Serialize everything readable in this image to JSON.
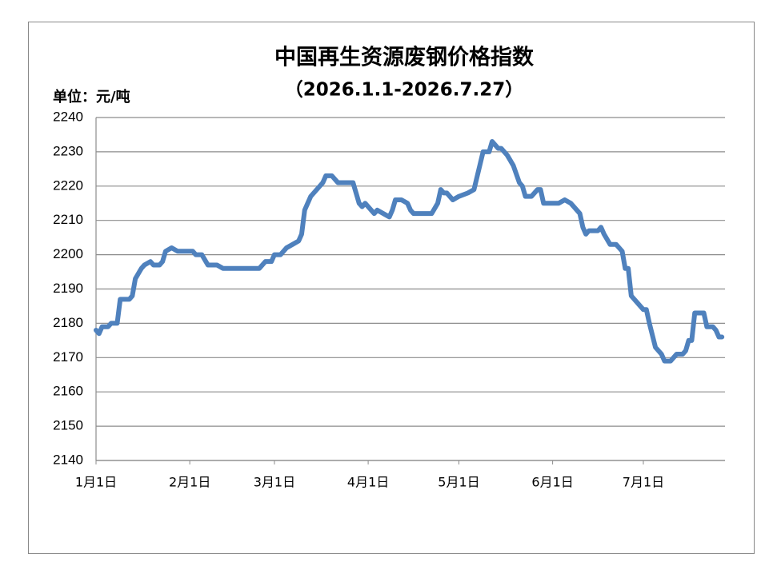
{
  "chart_data": {
    "type": "line",
    "title": "中国再生资源废钢价格指数",
    "subtitle": "（2026.1.1-2026.7.27）",
    "y_label": "单位：元/吨",
    "x": [
      "2026-01-01",
      "2026-01-02",
      "2026-01-03",
      "2026-01-05",
      "2026-01-06",
      "2026-01-08",
      "2026-01-09",
      "2026-01-12",
      "2026-01-13",
      "2026-01-14",
      "2026-01-16",
      "2026-01-17",
      "2026-01-19",
      "2026-01-20",
      "2026-01-22",
      "2026-01-23",
      "2026-01-24",
      "2026-01-26",
      "2026-01-28",
      "2026-02-02",
      "2026-02-03",
      "2026-02-05",
      "2026-02-07",
      "2026-02-10",
      "2026-02-12",
      "2026-02-24",
      "2026-02-26",
      "2026-02-28",
      "2026-03-01",
      "2026-03-03",
      "2026-03-05",
      "2026-03-07",
      "2026-03-09",
      "2026-03-10",
      "2026-03-11",
      "2026-03-13",
      "2026-03-16",
      "2026-03-17",
      "2026-03-18",
      "2026-03-20",
      "2026-03-22",
      "2026-03-27",
      "2026-03-29",
      "2026-03-30",
      "2026-03-31",
      "2026-04-03",
      "2026-04-04",
      "2026-04-06",
      "2026-04-08",
      "2026-04-09",
      "2026-04-10",
      "2026-04-12",
      "2026-04-14",
      "2026-04-15",
      "2026-04-16",
      "2026-04-22",
      "2026-04-24",
      "2026-04-25",
      "2026-04-26",
      "2026-04-27",
      "2026-04-29",
      "2026-05-01",
      "2026-05-04",
      "2026-05-06",
      "2026-05-09",
      "2026-05-11",
      "2026-05-12",
      "2026-05-14",
      "2026-05-15",
      "2026-05-17",
      "2026-05-19",
      "2026-05-21",
      "2026-05-22",
      "2026-05-23",
      "2026-05-25",
      "2026-05-27",
      "2026-05-28",
      "2026-05-29",
      "2026-06-03",
      "2026-06-05",
      "2026-06-07",
      "2026-06-08",
      "2026-06-10",
      "2026-06-11",
      "2026-06-12",
      "2026-06-13",
      "2026-06-16",
      "2026-06-17",
      "2026-06-18",
      "2026-06-20",
      "2026-06-22",
      "2026-06-24",
      "2026-06-25",
      "2026-06-26",
      "2026-06-27",
      "2026-06-29",
      "2026-07-01",
      "2026-07-02",
      "2026-07-03",
      "2026-07-05",
      "2026-07-07",
      "2026-07-08",
      "2026-07-10",
      "2026-07-12",
      "2026-07-14",
      "2026-07-15",
      "2026-07-16",
      "2026-07-17",
      "2026-07-18",
      "2026-07-21",
      "2026-07-22",
      "2026-07-24",
      "2026-07-25",
      "2026-07-26",
      "2026-07-27"
    ],
    "series": [
      {
        "color": "#4f81bd",
        "values": [
          2178,
          2177,
          2179,
          2179,
          2180,
          2180,
          2187,
          2187,
          2188,
          2193,
          2196,
          2197,
          2198,
          2197,
          2197,
          2198,
          2201,
          2202,
          2201,
          2201,
          2200,
          2200,
          2197,
          2197,
          2196,
          2196,
          2198,
          2198,
          2200,
          2200,
          2202,
          2203,
          2204,
          2206,
          2213,
          2217,
          2220,
          2221,
          2223,
          2223,
          2221,
          2221,
          2215,
          2214,
          2215,
          2212,
          2213,
          2212,
          2211,
          2213,
          2216,
          2216,
          2215,
          2213,
          2212,
          2212,
          2215,
          2219,
          2218,
          2218,
          2216,
          2217,
          2218,
          2219,
          2230,
          2230,
          2233,
          2231,
          2231,
          2229,
          2226,
          2221,
          2220,
          2217,
          2217,
          2219,
          2219,
          2215,
          2215,
          2216,
          2215,
          2214,
          2212,
          2208,
          2206,
          2207,
          2207,
          2208,
          2206,
          2203,
          2203,
          2201,
          2196,
          2196,
          2188,
          2186,
          2184,
          2184,
          2180,
          2173,
          2171,
          2169,
          2169,
          2171,
          2171,
          2172,
          2175,
          2175,
          2183,
          2183,
          2179,
          2179,
          2178,
          2176,
          2176
        ]
      }
    ],
    "xlim": [
      "2026-01-01",
      "2026-07-28"
    ],
    "xticks": [
      {
        "value": "2026-01-01",
        "label": "1月1日"
      },
      {
        "value": "2026-02-01",
        "label": "2月1日"
      },
      {
        "value": "2026-03-01",
        "label": "3月1日"
      },
      {
        "value": "2026-04-01",
        "label": "4月1日"
      },
      {
        "value": "2026-05-01",
        "label": "5月1日"
      },
      {
        "value": "2026-06-01",
        "label": "6月1日"
      },
      {
        "value": "2026-07-01",
        "label": "7月1日"
      }
    ],
    "ylim": [
      2140,
      2240
    ],
    "yticks": [
      2140,
      2150,
      2160,
      2170,
      2180,
      2190,
      2200,
      2210,
      2220,
      2230,
      2240
    ],
    "grid": true
  }
}
